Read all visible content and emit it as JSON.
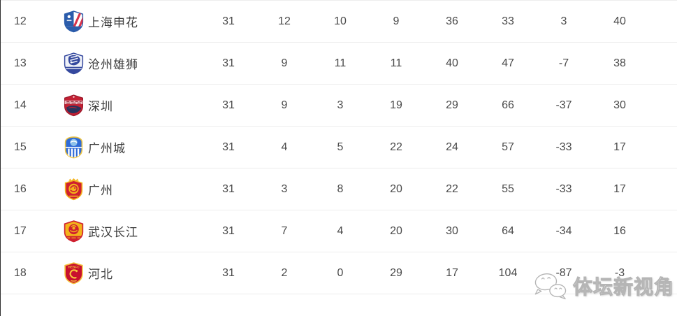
{
  "watermark": {
    "text": "体坛新视角",
    "icon": "wechat-chat-bubbles-icon"
  },
  "colors": {
    "page_bg": "#ffffff",
    "row_separator": "#ededed",
    "text": "#4a4a4a",
    "watermark_gray": "#b5b5b5",
    "left_edge_line": "#2e2e2e"
  },
  "table": {
    "rows": [
      {
        "rank": "12",
        "team": "上海申花",
        "badge_id": "shanghai-shenhua",
        "stats": [
          "31",
          "12",
          "10",
          "9",
          "36",
          "33",
          "3",
          "40"
        ]
      },
      {
        "rank": "13",
        "team": "沧州雄狮",
        "badge_id": "cangzhou-mighty-lions",
        "stats": [
          "31",
          "9",
          "11",
          "11",
          "40",
          "47",
          "-7",
          "38"
        ]
      },
      {
        "rank": "14",
        "team": "深圳",
        "badge_id": "shenzhen",
        "stats": [
          "31",
          "9",
          "3",
          "19",
          "29",
          "66",
          "-37",
          "30"
        ]
      },
      {
        "rank": "15",
        "team": "广州城",
        "badge_id": "guangzhou-city",
        "stats": [
          "31",
          "4",
          "5",
          "22",
          "24",
          "57",
          "-33",
          "17"
        ]
      },
      {
        "rank": "16",
        "team": "广州",
        "badge_id": "guangzhou",
        "stats": [
          "31",
          "3",
          "8",
          "20",
          "22",
          "55",
          "-33",
          "17"
        ]
      },
      {
        "rank": "17",
        "team": "武汉长江",
        "badge_id": "wuhan-changjiang",
        "stats": [
          "31",
          "7",
          "4",
          "20",
          "30",
          "64",
          "-34",
          "16"
        ]
      },
      {
        "rank": "18",
        "team": "河北",
        "badge_id": "hebei",
        "stats": [
          "31",
          "2",
          "0",
          "29",
          "17",
          "104",
          "-87",
          "-3"
        ]
      }
    ]
  }
}
